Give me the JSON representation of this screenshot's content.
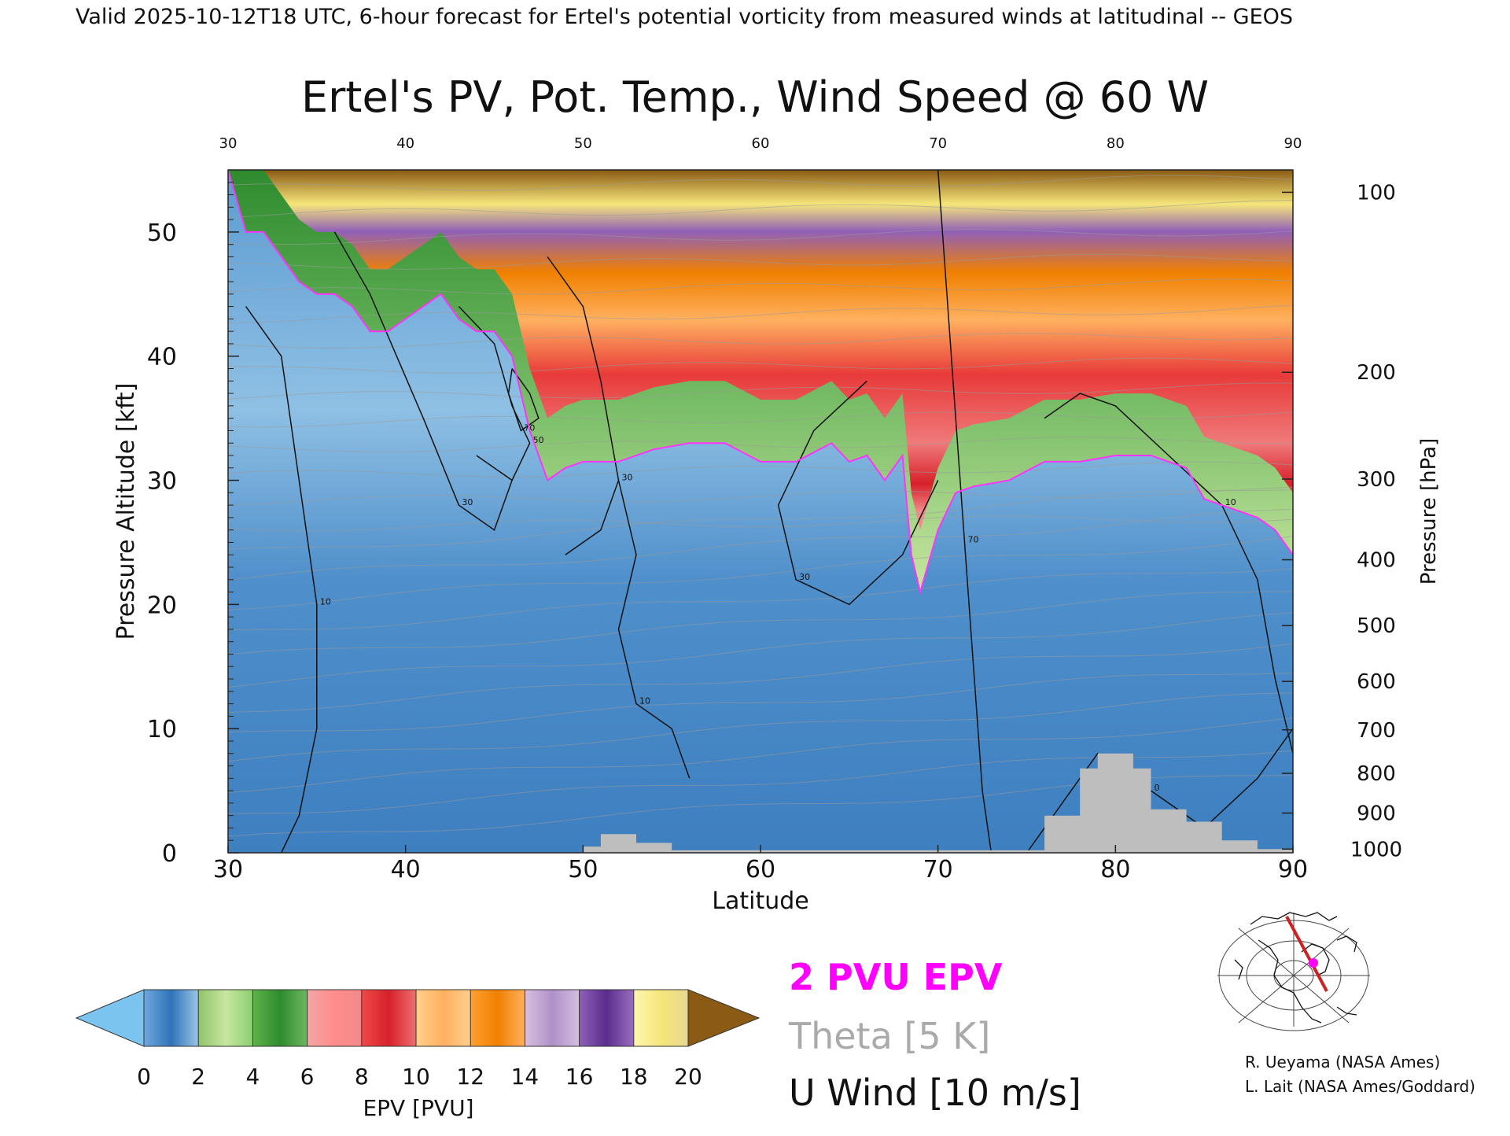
{
  "header": {
    "valid_line": "Valid 2025-10-12T18 UTC, 6-hour forecast for Ertel's potential vorticity from measured winds at latitudinal -- GEOS"
  },
  "chart_data": {
    "type": "heatmap",
    "title": "Ertel's PV, Pot. Temp., Wind Speed @ 60 W",
    "xlabel": "Latitude",
    "ylabel_left": "Pressure Altitude [kft]",
    "ylabel_right": "Pressure [hPa]",
    "xlim": [
      30,
      90
    ],
    "ylim_kft": [
      0,
      55
    ],
    "x_ticks": [
      "30",
      "40",
      "50",
      "60",
      "70",
      "80",
      "90"
    ],
    "top_ticks": [
      "30",
      "40",
      "50",
      "60",
      "70",
      "80",
      "90"
    ],
    "y_ticks_kft": [
      "0",
      "10",
      "20",
      "30",
      "40",
      "50"
    ],
    "pressure_ticks": [
      {
        "label": "100",
        "kft": 53.2
      },
      {
        "label": "200",
        "kft": 38.7
      },
      {
        "label": "300",
        "kft": 30.1
      },
      {
        "label": "400",
        "kft": 23.6
      },
      {
        "label": "500",
        "kft": 18.3
      },
      {
        "label": "600",
        "kft": 13.8
      },
      {
        "label": "700",
        "kft": 9.9
      },
      {
        "label": "800",
        "kft": 6.4
      },
      {
        "label": "900",
        "kft": 3.2
      },
      {
        "label": "1000",
        "kft": 0.3
      }
    ],
    "tropopause_2pvu_kft": [
      [
        30,
        55
      ],
      [
        31,
        50
      ],
      [
        32,
        50
      ],
      [
        33,
        48
      ],
      [
        34,
        46
      ],
      [
        35,
        45
      ],
      [
        36,
        45
      ],
      [
        37,
        44
      ],
      [
        38,
        42
      ],
      [
        39,
        42
      ],
      [
        40,
        43
      ],
      [
        41,
        44
      ],
      [
        42,
        45
      ],
      [
        43,
        43
      ],
      [
        44,
        42
      ],
      [
        45,
        42
      ],
      [
        46,
        40
      ],
      [
        47,
        34
      ],
      [
        48,
        30
      ],
      [
        49,
        31
      ],
      [
        50,
        31.5
      ],
      [
        52,
        31.5
      ],
      [
        54,
        32.5
      ],
      [
        56,
        33
      ],
      [
        58,
        33
      ],
      [
        60,
        31.5
      ],
      [
        62,
        31.5
      ],
      [
        64,
        33
      ],
      [
        65,
        31.5
      ],
      [
        66,
        32
      ],
      [
        67,
        30
      ],
      [
        68,
        32
      ],
      [
        68.5,
        24
      ],
      [
        69,
        21
      ],
      [
        70,
        26
      ],
      [
        71,
        29
      ],
      [
        72,
        29.5
      ],
      [
        74,
        30
      ],
      [
        76,
        31.5
      ],
      [
        78,
        31.5
      ],
      [
        80,
        32
      ],
      [
        82,
        32
      ],
      [
        84,
        31
      ],
      [
        85,
        28.5
      ],
      [
        86,
        28
      ],
      [
        88,
        27
      ],
      [
        89,
        26
      ],
      [
        90,
        24
      ]
    ],
    "topography_kft": [
      [
        50,
        0.5
      ],
      [
        51,
        0.5
      ],
      [
        51,
        1.5
      ],
      [
        53,
        1.5
      ],
      [
        53,
        0.8
      ],
      [
        55,
        0.8
      ],
      [
        55,
        0.2
      ],
      [
        76,
        0.2
      ],
      [
        76,
        3
      ],
      [
        78,
        3
      ],
      [
        78,
        6.8
      ],
      [
        79,
        6.8
      ],
      [
        79,
        8
      ],
      [
        81,
        8
      ],
      [
        81,
        6.8
      ],
      [
        82,
        6.8
      ],
      [
        82,
        3.5
      ],
      [
        84,
        3.5
      ],
      [
        84,
        2.5
      ],
      [
        86,
        2.5
      ],
      [
        86,
        1
      ],
      [
        88,
        1
      ],
      [
        88,
        0.3
      ],
      [
        90,
        0.3
      ]
    ],
    "u_wind_contours_ms": [
      {
        "label": "10",
        "points": [
          [
            31,
            44
          ],
          [
            33,
            40
          ],
          [
            34,
            30
          ],
          [
            35,
            20
          ],
          [
            35,
            10
          ],
          [
            34,
            3
          ],
          [
            33,
            0
          ]
        ]
      },
      {
        "label": "30",
        "points": [
          [
            36,
            50
          ],
          [
            38,
            45
          ],
          [
            41,
            35
          ],
          [
            43,
            28
          ],
          [
            45,
            26
          ],
          [
            46,
            30
          ]
        ]
      },
      {
        "label": "50",
        "points": [
          [
            43,
            44
          ],
          [
            45,
            41
          ],
          [
            46,
            36
          ],
          [
            47,
            33
          ],
          [
            46,
            30
          ],
          [
            44,
            32
          ]
        ]
      },
      {
        "label": "70",
        "points": [
          [
            46,
            39
          ],
          [
            47,
            37
          ],
          [
            47.5,
            35
          ],
          [
            46.5,
            34
          ],
          [
            45.8,
            37
          ],
          [
            46,
            39
          ]
        ]
      },
      {
        "label": "30",
        "points": [
          [
            48,
            48
          ],
          [
            50,
            44
          ],
          [
            51,
            38
          ],
          [
            52,
            30
          ],
          [
            51,
            26
          ],
          [
            49,
            24
          ]
        ]
      },
      {
        "label": "10",
        "points": [
          [
            52,
            30
          ],
          [
            53,
            24
          ],
          [
            52,
            18
          ],
          [
            53,
            12
          ],
          [
            55,
            10
          ],
          [
            56,
            6
          ]
        ]
      },
      {
        "label": "30",
        "points": [
          [
            66,
            38
          ],
          [
            63,
            34
          ],
          [
            61,
            28
          ],
          [
            62,
            22
          ],
          [
            65,
            20
          ],
          [
            68,
            24
          ],
          [
            70,
            30
          ]
        ]
      },
      {
        "label": "70",
        "points": [
          [
            70,
            55
          ],
          [
            70.5,
            45
          ],
          [
            71,
            35
          ],
          [
            71.5,
            25
          ],
          [
            72,
            15
          ],
          [
            72.5,
            5
          ],
          [
            73,
            0
          ]
        ]
      },
      {
        "label": "10",
        "points": [
          [
            76,
            35
          ],
          [
            78,
            37
          ],
          [
            80,
            36
          ],
          [
            83,
            32
          ],
          [
            86,
            28
          ],
          [
            88,
            22
          ],
          [
            89,
            14
          ],
          [
            90,
            8
          ]
        ]
      },
      {
        "label": "0",
        "points": [
          [
            75,
            0
          ],
          [
            77,
            4
          ],
          [
            79,
            8
          ],
          [
            82,
            5
          ],
          [
            85,
            2
          ],
          [
            88,
            6
          ],
          [
            90,
            10
          ]
        ]
      }
    ],
    "colorbar": {
      "label": "EPV [PVU]",
      "ticks": [
        "0",
        "2",
        "4",
        "6",
        "8",
        "10",
        "12",
        "14",
        "16",
        "18",
        "20"
      ],
      "bands": [
        {
          "from": 0,
          "to": 1,
          "colors": [
            "#6fa8dc",
            "#2f73b8"
          ]
        },
        {
          "from": 1,
          "to": 2,
          "colors": [
            "#2f73b8",
            "#9cc7e8"
          ]
        },
        {
          "from": 2,
          "to": 3,
          "colors": [
            "#8fc46a",
            "#c8e6a0"
          ]
        },
        {
          "from": 3,
          "to": 4,
          "colors": [
            "#c8e6a0",
            "#8ccf70"
          ]
        },
        {
          "from": 4,
          "to": 5,
          "colors": [
            "#5fb34a",
            "#2e8b2e"
          ]
        },
        {
          "from": 5,
          "to": 6,
          "colors": [
            "#2e8b2e",
            "#6fb860"
          ]
        },
        {
          "from": 6,
          "to": 7,
          "colors": [
            "#f2a6a6",
            "#ff8c8c"
          ]
        },
        {
          "from": 7,
          "to": 8,
          "colors": [
            "#ff8c8c",
            "#f28a8a"
          ]
        },
        {
          "from": 8,
          "to": 9,
          "colors": [
            "#f04a4a",
            "#d6202a"
          ]
        },
        {
          "from": 9,
          "to": 10,
          "colors": [
            "#d6202a",
            "#f07070"
          ]
        },
        {
          "from": 10,
          "to": 11,
          "colors": [
            "#ffd08a",
            "#ffb060"
          ]
        },
        {
          "from": 11,
          "to": 12,
          "colors": [
            "#ffb060",
            "#ffcf8f"
          ]
        },
        {
          "from": 12,
          "to": 13,
          "colors": [
            "#ffa030",
            "#f08000"
          ]
        },
        {
          "from": 13,
          "to": 14,
          "colors": [
            "#f08000",
            "#ffb060"
          ]
        },
        {
          "from": 14,
          "to": 15,
          "colors": [
            "#d8c0e0",
            "#b090c8"
          ]
        },
        {
          "from": 15,
          "to": 16,
          "colors": [
            "#b090c8",
            "#d4bfe0"
          ]
        },
        {
          "from": 16,
          "to": 17,
          "colors": [
            "#9060b8",
            "#5a2d8c"
          ]
        },
        {
          "from": 17,
          "to": 18,
          "colors": [
            "#5a2d8c",
            "#9a70c0"
          ]
        },
        {
          "from": 18,
          "to": 19,
          "colors": [
            "#fff6b0",
            "#f5e67a"
          ]
        },
        {
          "from": 19,
          "to": 20,
          "colors": [
            "#f5e67a",
            "#e8d890"
          ]
        }
      ],
      "under_color": "#7cc4f0",
      "over_color": "#8b5a14"
    },
    "legend_entries": [
      {
        "text": "2 PVU EPV",
        "color": "#ff00ff"
      },
      {
        "text": "Theta [5 K]",
        "color": "#aaaaaa"
      },
      {
        "text": "U Wind [10 m/s]",
        "color": "#111111"
      }
    ]
  },
  "credits": {
    "line1": "R. Ueyama (NASA Ames)",
    "line2": "L. Lait (NASA Ames/Goddard)"
  },
  "colors": {
    "tropopause": "#ff33ff",
    "topography": "#bebebe",
    "wind_contour": "#111111",
    "theta_contour": "#9a9a9a",
    "map_section": "#cc2222",
    "map_marker": "#ff00ff"
  }
}
